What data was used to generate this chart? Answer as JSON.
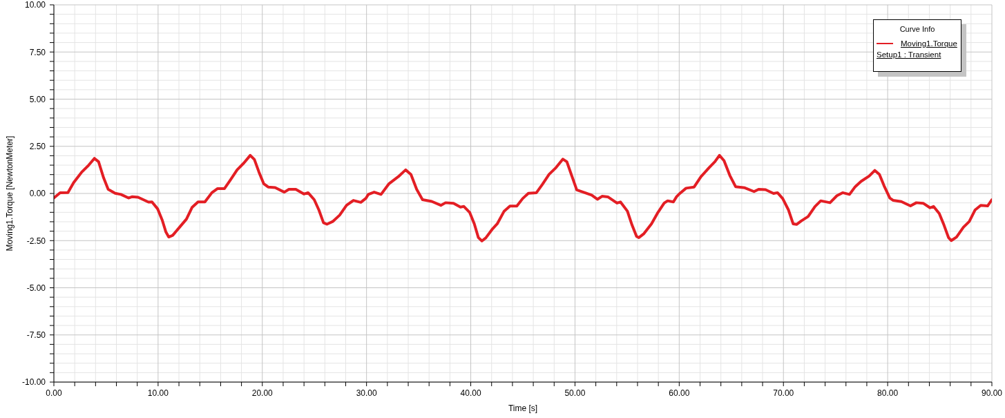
{
  "chart_data": {
    "type": "line",
    "xlabel": "Time [s]",
    "ylabel": "Moving1.Torque [NewtonMeter]",
    "legend_title": "Curve Info",
    "annotations": [
      "Setup1 : Transient"
    ],
    "legend": "top right",
    "grid": true,
    "xlim": [
      0,
      90
    ],
    "ylim": [
      -10,
      10
    ],
    "xticks": [
      {
        "value": 0,
        "label": "0.00"
      },
      {
        "value": 2,
        "label": null
      },
      {
        "value": 4,
        "label": null
      },
      {
        "value": 6,
        "label": null
      },
      {
        "value": 8,
        "label": null
      },
      {
        "value": 10,
        "label": "10.00"
      },
      {
        "value": 12,
        "label": null
      },
      {
        "value": 14,
        "label": null
      },
      {
        "value": 16,
        "label": null
      },
      {
        "value": 18,
        "label": null
      },
      {
        "value": 20,
        "label": "20.00"
      },
      {
        "value": 22,
        "label": null
      },
      {
        "value": 24,
        "label": null
      },
      {
        "value": 26,
        "label": null
      },
      {
        "value": 28,
        "label": null
      },
      {
        "value": 30,
        "label": "30.00"
      },
      {
        "value": 32,
        "label": null
      },
      {
        "value": 34,
        "label": null
      },
      {
        "value": 36,
        "label": null
      },
      {
        "value": 38,
        "label": null
      },
      {
        "value": 40,
        "label": "40.00"
      },
      {
        "value": 42,
        "label": null
      },
      {
        "value": 44,
        "label": null
      },
      {
        "value": 46,
        "label": null
      },
      {
        "value": 48,
        "label": null
      },
      {
        "value": 50,
        "label": "50.00"
      },
      {
        "value": 52,
        "label": null
      },
      {
        "value": 54,
        "label": null
      },
      {
        "value": 56,
        "label": null
      },
      {
        "value": 58,
        "label": null
      },
      {
        "value": 60,
        "label": "60.00"
      },
      {
        "value": 62,
        "label": null
      },
      {
        "value": 64,
        "label": null
      },
      {
        "value": 66,
        "label": null
      },
      {
        "value": 68,
        "label": null
      },
      {
        "value": 70,
        "label": "70.00"
      },
      {
        "value": 72,
        "label": null
      },
      {
        "value": 74,
        "label": null
      },
      {
        "value": 76,
        "label": null
      },
      {
        "value": 78,
        "label": null
      },
      {
        "value": 80,
        "label": "80.00"
      },
      {
        "value": 82,
        "label": null
      },
      {
        "value": 84,
        "label": null
      },
      {
        "value": 86,
        "label": null
      },
      {
        "value": 88,
        "label": null
      },
      {
        "value": 90,
        "label": "90.00"
      }
    ],
    "yticks": [
      {
        "value": -10,
        "label": "-10.00"
      },
      {
        "value": -9.5,
        "label": null
      },
      {
        "value": -9,
        "label": null
      },
      {
        "value": -8.5,
        "label": null
      },
      {
        "value": -8,
        "label": null
      },
      {
        "value": -7.5,
        "label": "-7.50"
      },
      {
        "value": -7,
        "label": null
      },
      {
        "value": -6.5,
        "label": null
      },
      {
        "value": -6,
        "label": null
      },
      {
        "value": -5.5,
        "label": null
      },
      {
        "value": -5,
        "label": "-5.00"
      },
      {
        "value": -4.5,
        "label": null
      },
      {
        "value": -4,
        "label": null
      },
      {
        "value": -3.5,
        "label": null
      },
      {
        "value": -3,
        "label": null
      },
      {
        "value": -2.5,
        "label": "-2.50"
      },
      {
        "value": -2,
        "label": null
      },
      {
        "value": -1.5,
        "label": null
      },
      {
        "value": -1,
        "label": null
      },
      {
        "value": -0.5,
        "label": null
      },
      {
        "value": 0,
        "label": "0.00"
      },
      {
        "value": 0.5,
        "label": null
      },
      {
        "value": 1,
        "label": null
      },
      {
        "value": 1.5,
        "label": null
      },
      {
        "value": 2,
        "label": null
      },
      {
        "value": 2.5,
        "label": "2.50"
      },
      {
        "value": 3,
        "label": null
      },
      {
        "value": 3.5,
        "label": null
      },
      {
        "value": 4,
        "label": null
      },
      {
        "value": 4.5,
        "label": null
      },
      {
        "value": 5,
        "label": "5.00"
      },
      {
        "value": 5.5,
        "label": null
      },
      {
        "value": 6,
        "label": null
      },
      {
        "value": 6.5,
        "label": null
      },
      {
        "value": 7,
        "label": null
      },
      {
        "value": 7.5,
        "label": "7.50"
      },
      {
        "value": 8,
        "label": null
      },
      {
        "value": 8.5,
        "label": null
      },
      {
        "value": 9,
        "label": null
      },
      {
        "value": 9.5,
        "label": null
      },
      {
        "value": 10,
        "label": "10.00"
      }
    ],
    "series": [
      {
        "name": "Moving1.Torque",
        "color": "#e31e24",
        "x": [
          0,
          0.6,
          1.35,
          1.9,
          2.67,
          3.34,
          3.89,
          4.29,
          4.77,
          5.21,
          5.88,
          6.43,
          7.16,
          7.53,
          8.08,
          9.08,
          9.41,
          9.96,
          10.4,
          10.74,
          11.02,
          11.4,
          12.06,
          12.72,
          13.27,
          13.83,
          14.49,
          15.16,
          15.71,
          16.37,
          16.92,
          17.58,
          18.24,
          18.84,
          19.24,
          19.68,
          20.13,
          20.56,
          21.23,
          22.11,
          22.55,
          23.21,
          23.99,
          24.39,
          24.98,
          25.43,
          25.87,
          26.2,
          26.75,
          27.42,
          28.08,
          28.74,
          29.45,
          29.95,
          30.17,
          30.73,
          31.39,
          32.16,
          33.05,
          33.75,
          34.26,
          34.81,
          35.37,
          36.25,
          37.13,
          37.58,
          38.35,
          39.01,
          39.34,
          39.89,
          40.34,
          40.73,
          41.07,
          41.44,
          42.1,
          42.54,
          43.2,
          43.76,
          44.42,
          44.98,
          45.53,
          46.3,
          46.85,
          47.51,
          48.18,
          48.84,
          49.22,
          49.72,
          50.17,
          50.94,
          51.6,
          52.15,
          52.6,
          53.15,
          54.03,
          54.36,
          55.03,
          55.47,
          55.91,
          56.13,
          56.58,
          57.34,
          57.9,
          58.56,
          58.89,
          59.44,
          59.75,
          60,
          60.66,
          61.43,
          62.09,
          62.87,
          63.42,
          63.86,
          64.3,
          64.86,
          65.41,
          66.29,
          67.18,
          67.62,
          68.28,
          69.05,
          69.43,
          69.93,
          70.49,
          70.93,
          71.26,
          71.7,
          72.37,
          73.03,
          73.58,
          74.47,
          75.13,
          75.68,
          76.34,
          76.89,
          77.45,
          78.22,
          78.77,
          79.21,
          79.66,
          80.21,
          80.54,
          81.31,
          82.19,
          82.75,
          83.41,
          84.07,
          84.4,
          84.95,
          85.4,
          85.84,
          86.1,
          86.61,
          87.27,
          87.83,
          88.38,
          88.93,
          89.59,
          90
        ],
        "values": [
          -0.24,
          0.04,
          0.05,
          0.58,
          1.13,
          1.5,
          1.86,
          1.68,
          0.83,
          0.22,
          0.01,
          -0.05,
          -0.24,
          -0.17,
          -0.2,
          -0.46,
          -0.45,
          -0.82,
          -1.42,
          -2.03,
          -2.31,
          -2.22,
          -1.79,
          -1.36,
          -0.73,
          -0.45,
          -0.45,
          0.04,
          0.26,
          0.26,
          0.7,
          1.25,
          1.62,
          2.02,
          1.8,
          1.13,
          0.52,
          0.34,
          0.31,
          0.07,
          0.22,
          0.22,
          -0.03,
          0.04,
          -0.33,
          -0.88,
          -1.55,
          -1.63,
          -1.49,
          -1.15,
          -0.63,
          -0.37,
          -0.47,
          -0.25,
          -0.05,
          0.07,
          -0.05,
          0.52,
          0.89,
          1.25,
          1.01,
          0.22,
          -0.33,
          -0.42,
          -0.63,
          -0.49,
          -0.52,
          -0.72,
          -0.69,
          -1.0,
          -1.61,
          -2.34,
          -2.52,
          -2.36,
          -1.87,
          -1.61,
          -0.94,
          -0.67,
          -0.67,
          -0.27,
          0.01,
          0.04,
          0.46,
          1.01,
          1.37,
          1.82,
          1.68,
          0.89,
          0.19,
          0.04,
          -0.09,
          -0.31,
          -0.15,
          -0.18,
          -0.51,
          -0.45,
          -0.94,
          -1.67,
          -2.28,
          -2.34,
          -2.15,
          -1.61,
          -1.06,
          -0.51,
          -0.39,
          -0.45,
          -0.17,
          -0.03,
          0.28,
          0.34,
          0.89,
          1.37,
          1.68,
          2.02,
          1.74,
          0.95,
          0.36,
          0.3,
          0.1,
          0.22,
          0.2,
          0.0,
          0.04,
          -0.27,
          -0.88,
          -1.61,
          -1.64,
          -1.46,
          -1.22,
          -0.69,
          -0.39,
          -0.49,
          -0.12,
          0.04,
          -0.05,
          0.36,
          0.64,
          0.92,
          1.22,
          1.01,
          0.4,
          -0.24,
          -0.37,
          -0.43,
          -0.66,
          -0.49,
          -0.52,
          -0.76,
          -0.69,
          -1.06,
          -1.67,
          -2.34,
          -2.5,
          -2.31,
          -1.79,
          -1.49,
          -0.88,
          -0.63,
          -0.66,
          -0.33
        ]
      }
    ]
  }
}
